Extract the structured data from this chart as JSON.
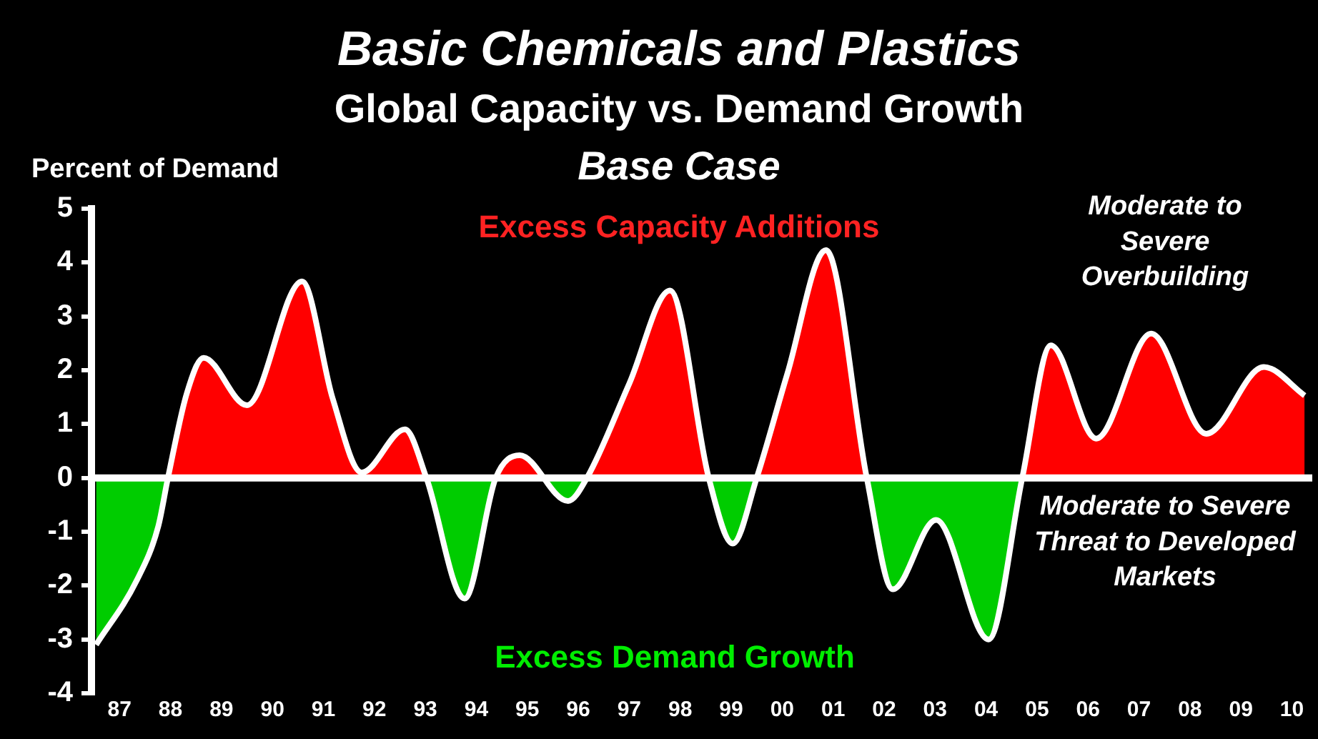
{
  "chart_data": {
    "type": "area",
    "title": "Basic Chemicals and Plastics",
    "subtitle": "Global Capacity vs. Demand Growth",
    "ylabel": "Percent of Demand",
    "annotations": [
      "Base Case",
      "Excess Capacity Additions",
      "Excess Demand Growth",
      "Moderate to Severe Overbuilding",
      "Moderate to Severe Threat to Developed Markets"
    ],
    "x": [
      1986.54,
      1987.34,
      1987.76,
      1987.95,
      1988.32,
      1988.65,
      1989.5,
      1990.58,
      1991.18,
      1991.75,
      1992.6,
      1993.02,
      1993.77,
      1994.38,
      1994.85,
      1995.8,
      1996.17,
      1997.0,
      1997.8,
      1998.56,
      1999.03,
      1999.5,
      2000.1,
      2000.86,
      2001.66,
      2002.17,
      2003.02,
      2004.05,
      2004.71,
      2005.27,
      2006.16,
      2007.24,
      2008.32,
      2009.45,
      2010.25
    ],
    "series": [
      {
        "color": "#ffffff",
        "values": [
          -3.1,
          -1.9,
          -0.9,
          0,
          1.57,
          2.23,
          1.35,
          3.65,
          1.48,
          0.1,
          0.9,
          0,
          -2.24,
          0,
          0.42,
          -0.43,
          0,
          1.75,
          3.48,
          0,
          -1.22,
          0,
          1.93,
          4.23,
          0,
          -2.07,
          -0.78,
          -3.0,
          0,
          2.46,
          0.73,
          2.68,
          0.82,
          2.06,
          1.53
        ]
      }
    ],
    "xlim": [
      1986.45,
      2010.4
    ],
    "xticks": [
      {
        "value": 1987,
        "label": "87"
      },
      {
        "value": 1988,
        "label": "88"
      },
      {
        "value": 1989,
        "label": "89"
      },
      {
        "value": 1990,
        "label": "90"
      },
      {
        "value": 1991,
        "label": "91"
      },
      {
        "value": 1992,
        "label": "92"
      },
      {
        "value": 1993,
        "label": "93"
      },
      {
        "value": 1994,
        "label": "94"
      },
      {
        "value": 1995,
        "label": "95"
      },
      {
        "value": 1996,
        "label": "96"
      },
      {
        "value": 1997,
        "label": "97"
      },
      {
        "value": 1998,
        "label": "98"
      },
      {
        "value": 1999,
        "label": "99"
      },
      {
        "value": 2000,
        "label": "00"
      },
      {
        "value": 2001,
        "label": "01"
      },
      {
        "value": 2002,
        "label": "02"
      },
      {
        "value": 2003,
        "label": "03"
      },
      {
        "value": 2004,
        "label": "04"
      },
      {
        "value": 2005,
        "label": "05"
      },
      {
        "value": 2006,
        "label": "06"
      },
      {
        "value": 2007,
        "label": "07"
      },
      {
        "value": 2008,
        "label": "08"
      },
      {
        "value": 2009,
        "label": "09"
      },
      {
        "value": 2010,
        "label": "10"
      }
    ],
    "ylim": [
      -4,
      5
    ],
    "yticks": [
      -4,
      -3,
      -2,
      -1,
      0,
      1,
      2,
      3,
      4,
      5
    ],
    "ref_lines": [
      {
        "axis": "y",
        "value": 0,
        "color": "#ffffff"
      }
    ],
    "grid": false,
    "legend": false
  }
}
